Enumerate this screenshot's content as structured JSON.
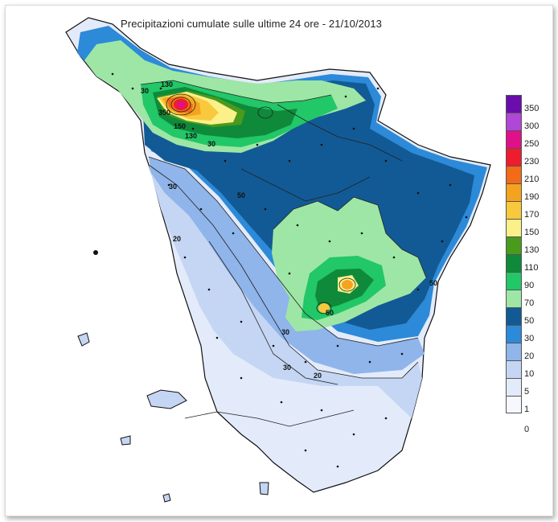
{
  "title": "Precipitazioni cumulate sulle ultime 24 ore - 21/10/2013",
  "legend": {
    "classes": [
      {
        "label": "350",
        "color": "#6a0dad"
      },
      {
        "label": "300",
        "color": "#b047d6"
      },
      {
        "label": "250",
        "color": "#e0108a"
      },
      {
        "label": "230",
        "color": "#ee1c2e"
      },
      {
        "label": "210",
        "color": "#f36a18"
      },
      {
        "label": "190",
        "color": "#f5a31f"
      },
      {
        "label": "170",
        "color": "#f8c93c"
      },
      {
        "label": "150",
        "color": "#fbf08a"
      },
      {
        "label": "130",
        "color": "#4a9a1c"
      },
      {
        "label": "110",
        "color": "#0f8a3a"
      },
      {
        "label": "90",
        "color": "#22c767"
      },
      {
        "label": "70",
        "color": "#9ee6a6"
      },
      {
        "label": "50",
        "color": "#125a95"
      },
      {
        "label": "30",
        "color": "#2c8ad8"
      },
      {
        "label": "20",
        "color": "#8fb5ea"
      },
      {
        "label": "10",
        "color": "#c5d6f4"
      },
      {
        "label": "5",
        "color": "#e3ebfb"
      },
      {
        "label": "1",
        "color": "#f6f8fe"
      }
    ],
    "zero_label": "0"
  },
  "contour_labels": [
    "350",
    "150",
    "130",
    "130",
    "30",
    "50",
    "50",
    "30",
    "30",
    "20",
    "30",
    "20",
    "50",
    "30",
    "30",
    "50",
    "30",
    "90",
    "70"
  ]
}
